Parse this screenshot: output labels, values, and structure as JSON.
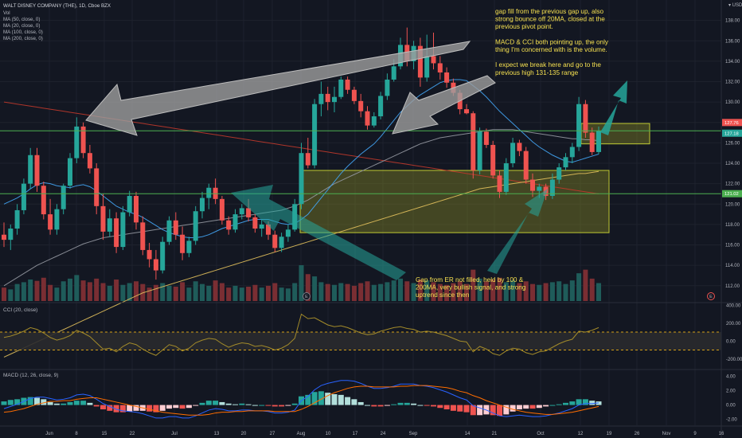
{
  "header": {
    "symbol": "WALT DISNEY COMPANY (THE), 1D, Cboe BZX",
    "vol_label": "Vol",
    "indicators": [
      "MA (50, close, 0)",
      "MA (20, close, 0)",
      "MA (100, close, 0)",
      "MA (200, close, 0)"
    ],
    "currency": "USD"
  },
  "annotations": {
    "top_note": [
      "gap fill from the previous gap up, also",
      "strong bounce off 20MA, closed at the",
      "previous pivot point.",
      "",
      "MACD & CCI both pointing up, the only",
      "thing I'm concerned with is the volume.",
      "",
      "I expect we break here and go to the",
      "previous high 131-135 range"
    ],
    "bottom_note": [
      "Gap from ER not filled, held by 100 &",
      "200MA, very bullish signal, and strong",
      "uptrend since then"
    ]
  },
  "cci_panel": {
    "title": "CCI (20, close)",
    "ticks": [
      "400.00",
      "200.00",
      "0.00",
      "-200.00"
    ]
  },
  "macd_panel": {
    "title": "MACD (12, 26, close, 9)",
    "ticks": [
      "4.00",
      "2.00",
      "0.00",
      "-2.00"
    ]
  },
  "price_labels": [
    "127.76",
    "127.18",
    "121.02"
  ],
  "earnings_markers": [
    "E",
    "E"
  ],
  "colors": {
    "up": "#26a69a",
    "down": "#ef5350",
    "ma20": "#42a5f5",
    "ma50": "#9598a1",
    "ma100": "#e2c05c",
    "ma200": "#c0392b",
    "hline": "#4caf50",
    "zone": "#9e9d24",
    "arrow": "#26a69a"
  },
  "chart_data": {
    "type": "candlestick",
    "xlabels": [
      "Jun",
      "8",
      "15",
      "22",
      "Jul",
      "13",
      "20",
      "27",
      "Aug",
      "10",
      "17",
      "24",
      "Sep",
      "14",
      "21",
      "Oct",
      "12",
      "19",
      "26",
      "Nov",
      "9",
      "16"
    ],
    "ylim": [
      110.5,
      140
    ],
    "yticks": [
      "138.00",
      "136.00",
      "134.00",
      "132.00",
      "130.00",
      "128.00",
      "126.00",
      "124.00",
      "122.00",
      "120.00",
      "118.00",
      "116.00",
      "114.00",
      "112.00"
    ],
    "hlines": [
      127.18,
      121.02
    ],
    "candles": [
      [
        117,
        118.2,
        115.8,
        116.5
      ],
      [
        116.5,
        118,
        115.5,
        117.6
      ],
      [
        117.6,
        120,
        117,
        119.4
      ],
      [
        119.4,
        122.5,
        119,
        122
      ],
      [
        122,
        125.5,
        121.5,
        124.8
      ],
      [
        124.8,
        125.5,
        121.2,
        121.8
      ],
      [
        121.8,
        122.2,
        118.5,
        119
      ],
      [
        119,
        120.5,
        117,
        117.5
      ],
      [
        117.5,
        120,
        117,
        119.5
      ],
      [
        119.5,
        122,
        119,
        121.8
      ],
      [
        121.8,
        125,
        121.5,
        124.5
      ],
      [
        124.5,
        128.5,
        124,
        127.6
      ],
      [
        127.6,
        128,
        124.5,
        125
      ],
      [
        125,
        125.8,
        123,
        123.5
      ],
      [
        123.5,
        124,
        119,
        119.8
      ],
      [
        119.8,
        121,
        116.5,
        117.3
      ],
      [
        117.3,
        119.5,
        116.8,
        118.6
      ],
      [
        118.6,
        119.2,
        115.2,
        115.8
      ],
      [
        115.8,
        119.8,
        115.5,
        119.2
      ],
      [
        119.2,
        121.3,
        118.8,
        120.8
      ],
      [
        120.8,
        121.2,
        117.5,
        118.2
      ],
      [
        118.2,
        118.8,
        115,
        115.5
      ],
      [
        115.5,
        116.2,
        113.8,
        114.6
      ],
      [
        114.6,
        115.5,
        112.6,
        113.5
      ],
      [
        113.5,
        116.8,
        113.2,
        116.3
      ],
      [
        116.3,
        118.8,
        116,
        118.4
      ],
      [
        118.4,
        119.2,
        116.5,
        117
      ],
      [
        117,
        117.8,
        114.5,
        115.2
      ],
      [
        115.2,
        116.8,
        114.8,
        116.4
      ],
      [
        116.4,
        119.8,
        116,
        119.3
      ],
      [
        119.3,
        121.2,
        118.6,
        120.6
      ],
      [
        120.6,
        122,
        119.5,
        121.6
      ],
      [
        121.6,
        122.5,
        120,
        120.5
      ],
      [
        120.5,
        120.8,
        118,
        118.4
      ],
      [
        118.4,
        118.8,
        117,
        117.5
      ],
      [
        117.5,
        119.5,
        117.2,
        119
      ],
      [
        119,
        120,
        118.5,
        119.6
      ],
      [
        119.6,
        120.5,
        118.3,
        118.7
      ],
      [
        118.7,
        119,
        117.2,
        117.6
      ],
      [
        117.6,
        118.5,
        116.8,
        118
      ],
      [
        118,
        118.3,
        116.5,
        117
      ],
      [
        117,
        117.4,
        115.3,
        115.7
      ],
      [
        115.7,
        117.2,
        115.3,
        116.8
      ],
      [
        116.8,
        118,
        116.3,
        117.5
      ],
      [
        117.5,
        120.5,
        117.3,
        120
      ],
      [
        120,
        126,
        119.5,
        125
      ],
      [
        125,
        126.5,
        123.5,
        123.8
      ],
      [
        123.8,
        130.3,
        123.5,
        129.8
      ],
      [
        129.8,
        132,
        128.6,
        130.8
      ],
      [
        130.8,
        131.5,
        129.2,
        130
      ],
      [
        130,
        131.5,
        129,
        130.5
      ],
      [
        130.5,
        132.5,
        130.3,
        132.2
      ],
      [
        132.2,
        132.5,
        130.8,
        131.2
      ],
      [
        131.2,
        131.5,
        129.8,
        130.1
      ],
      [
        130.1,
        130.8,
        128.5,
        129.1
      ],
      [
        129.1,
        129.6,
        127.3,
        127.7
      ],
      [
        127.7,
        129,
        127.5,
        128.6
      ],
      [
        128.6,
        131,
        128.3,
        130.6
      ],
      [
        130.6,
        132.8,
        130.2,
        132.2
      ],
      [
        132.2,
        134.2,
        132,
        133.5
      ],
      [
        133.5,
        136.3,
        133.2,
        135.6
      ],
      [
        135.6,
        137.3,
        133.5,
        134
      ],
      [
        134,
        136,
        133.2,
        135.5
      ],
      [
        135.5,
        136.3,
        131.5,
        132.4
      ],
      [
        132.4,
        136.6,
        132,
        134.5
      ],
      [
        134.5,
        136.8,
        133.2,
        133.8
      ],
      [
        133.8,
        134.5,
        132.2,
        132.9
      ],
      [
        132.9,
        133.4,
        131.4,
        131.9
      ],
      [
        131.9,
        132.3,
        130.6,
        130.9
      ],
      [
        130.9,
        131.2,
        128.8,
        129.3
      ],
      [
        129.3,
        129.8,
        128.8,
        128.9
      ],
      [
        128.9,
        129.1,
        122.5,
        123.3
      ],
      [
        123.3,
        127.5,
        122.9,
        127.1
      ],
      [
        127.1,
        127.4,
        125.5,
        125.8
      ],
      [
        125.8,
        126.2,
        122.5,
        122.8
      ],
      [
        122.8,
        123.3,
        120.6,
        121.2
      ],
      [
        121.2,
        124.5,
        120.9,
        124
      ],
      [
        124,
        126.5,
        123.6,
        126
      ],
      [
        126,
        126.3,
        124.7,
        125.2
      ],
      [
        125.2,
        125.6,
        122,
        122.4
      ],
      [
        122.4,
        123,
        120.7,
        121.3
      ],
      [
        121.3,
        122,
        120.6,
        121.7
      ],
      [
        121.7,
        122,
        120.4,
        120.8
      ],
      [
        120.8,
        123,
        120.5,
        122.4
      ],
      [
        122.4,
        124,
        122,
        123.6
      ],
      [
        123.6,
        125,
        123.3,
        124.6
      ],
      [
        124.6,
        126,
        124,
        125.6
      ],
      [
        125.6,
        130.5,
        125.2,
        129.8
      ],
      [
        129.8,
        130.2,
        126.5,
        127
      ],
      [
        127,
        127.5,
        124.8,
        125.1
      ],
      [
        125.1,
        127.6,
        124.9,
        127.2
      ]
    ],
    "ma20": [
      120,
      120.3,
      120.6,
      121,
      121.5,
      121.9,
      122.1,
      122,
      121.8,
      121.7,
      121.6,
      121.8,
      121.9,
      121.7,
      121.3,
      120.8,
      120.3,
      119.8,
      119.5,
      119.2,
      119,
      118.7,
      118.3,
      117.9,
      117.5,
      117.2,
      117,
      116.8,
      116.7,
      116.7,
      116.8,
      117,
      117.3,
      117.6,
      117.8,
      118,
      118.2,
      118.4,
      118.5,
      118.5,
      118.5,
      118.3,
      118.1,
      118,
      118.1,
      118.5,
      119,
      119.8,
      120.6,
      121.4,
      122.2,
      123,
      123.7,
      124.3,
      124.9,
      125.4,
      125.9,
      126.6,
      127.4,
      128.2,
      129,
      129.6,
      130.2,
      130.7,
      131.1,
      131.5,
      131.9,
      132.1,
      132.2,
      132.2,
      132.1,
      131.6,
      131.1,
      130.5,
      129.8,
      129.1,
      128.5,
      127.9,
      127.3,
      126.7,
      126.1,
      125.6,
      125.2,
      124.8,
      124.5,
      124.2,
      124.1,
      124.3,
      124.5,
      124.7,
      124.9
    ],
    "ma50": [
      112,
      112.4,
      112.8,
      113.2,
      113.6,
      114,
      114.3,
      114.6,
      114.9,
      115.2,
      115.5,
      115.8,
      116.1,
      116.3,
      116.5,
      116.7,
      116.8,
      116.9,
      117,
      117.1,
      117.2,
      117.3,
      117.4,
      117.5,
      117.6,
      117.7,
      117.8,
      117.9,
      118,
      118.1,
      118.2,
      118.3,
      118.4,
      118.5,
      118.6,
      118.7,
      118.8,
      118.9,
      119,
      119.1,
      119.2,
      119.3,
      119.4,
      119.6,
      119.8,
      120.1,
      120.4,
      120.8,
      121.2,
      121.6,
      122,
      122.3,
      122.6,
      122.9,
      123.2,
      123.5,
      123.8,
      124.1,
      124.4,
      124.7,
      125,
      125.3,
      125.6,
      125.9,
      126.1,
      126.3,
      126.5,
      126.6,
      126.7,
      126.8,
      126.9,
      127,
      127.1,
      127.2,
      127.3,
      127.3,
      127.3,
      127.3,
      127.2,
      127.1,
      127,
      126.9,
      126.8,
      126.7,
      126.6,
      126.5,
      126.4,
      126.4,
      126.3,
      126.3,
      126.2
    ],
    "ma100": [
      105,
      105.3,
      105.6,
      105.9,
      106.2,
      106.5,
      106.8,
      107.1,
      107.4,
      107.7,
      108,
      108.3,
      108.6,
      108.9,
      109.2,
      109.5,
      109.8,
      110.1,
      110.4,
      110.7,
      111,
      111.3,
      111.5,
      111.7,
      111.9,
      112.1,
      112.3,
      112.5,
      112.7,
      112.9,
      113.1,
      113.3,
      113.5,
      113.7,
      113.9,
      114.1,
      114.3,
      114.5,
      114.7,
      114.9,
      115.1,
      115.3,
      115.5,
      115.7,
      115.9,
      116.1,
      116.3,
      116.5,
      116.7,
      116.9,
      117.1,
      117.3,
      117.5,
      117.7,
      117.9,
      118.1,
      118.3,
      118.5,
      118.7,
      118.9,
      119.1,
      119.3,
      119.5,
      119.7,
      119.9,
      120.1,
      120.3,
      120.5,
      120.7,
      120.9,
      121.1,
      121.3,
      121.5,
      121.6,
      121.7,
      121.8,
      121.9,
      122,
      122.1,
      122.2,
      122.3,
      122.4,
      122.5,
      122.6,
      122.7,
      122.8,
      122.9,
      123,
      123,
      123.1,
      123.2
    ],
    "ma200": [
      130,
      129.9,
      129.8,
      129.7,
      129.6,
      129.5,
      129.4,
      129.3,
      129.2,
      129.1,
      129,
      128.9,
      128.8,
      128.7,
      128.6,
      128.5,
      128.4,
      128.3,
      128.2,
      128.1,
      128,
      127.9,
      127.8,
      127.7,
      127.6,
      127.5,
      127.4,
      127.3,
      127.2,
      127.1,
      127,
      126.9,
      126.8,
      126.7,
      126.6,
      126.5,
      126.4,
      126.3,
      126.2,
      126.1,
      126,
      125.9,
      125.8,
      125.7,
      125.6,
      125.5,
      125.4,
      125.3,
      125.2,
      125.1,
      125,
      124.9,
      124.8,
      124.7,
      124.6,
      124.5,
      124.4,
      124.3,
      124.2,
      124.1,
      124,
      123.9,
      123.8,
      123.7,
      123.6,
      123.5,
      123.4,
      123.3,
      123.2,
      123.1,
      123,
      122.9,
      122.8,
      122.7,
      122.6,
      122.5,
      122.4,
      122.3,
      122.2,
      122.1,
      122,
      121.9,
      121.8,
      121.7,
      121.6,
      121.5,
      121.4,
      121.3,
      121.2,
      121.1,
      121
    ],
    "volume": [
      30,
      26,
      38,
      42,
      48,
      45,
      52,
      36,
      30,
      44,
      50,
      58,
      46,
      42,
      50,
      40,
      34,
      48,
      36,
      40,
      44,
      38,
      30,
      36,
      40,
      34,
      32,
      42,
      30,
      44,
      38,
      34,
      46,
      40,
      30,
      34,
      30,
      32,
      36,
      30,
      34,
      40,
      30,
      28,
      40,
      80,
      60,
      55,
      42,
      38,
      36,
      40,
      38,
      34,
      40,
      44,
      36,
      38,
      42,
      46,
      50,
      44,
      40,
      48,
      46,
      42,
      38,
      36,
      40,
      44,
      38,
      70,
      50,
      44,
      48,
      52,
      42,
      46,
      40,
      44,
      38,
      36,
      40,
      42,
      44,
      38,
      46,
      62,
      70,
      50,
      40
    ],
    "cci": [
      40,
      55,
      80,
      110,
      150,
      130,
      90,
      40,
      10,
      30,
      60,
      120,
      90,
      50,
      -20,
      -90,
      -80,
      -120,
      -60,
      -20,
      -40,
      -90,
      -130,
      -160,
      -100,
      -40,
      -60,
      -110,
      -80,
      -20,
      10,
      30,
      20,
      -30,
      -70,
      -40,
      -20,
      -30,
      -60,
      -50,
      -70,
      -100,
      -80,
      -40,
      30,
      300,
      250,
      260,
      220,
      180,
      160,
      170,
      150,
      120,
      90,
      70,
      80,
      110,
      130,
      150,
      160,
      140,
      130,
      100,
      110,
      100,
      80,
      60,
      30,
      0,
      -10,
      -120,
      -60,
      -90,
      -140,
      -160,
      -110,
      -80,
      -90,
      -130,
      -150,
      -120,
      -110,
      -70,
      -30,
      0,
      20,
      110,
      100,
      120,
      150
    ],
    "macd": [
      -0.5,
      -0.2,
      0.1,
      0.5,
      0.9,
      1.1,
      1.1,
      0.9,
      0.7,
      0.8,
      1.0,
      1.4,
      1.5,
      1.3,
      0.8,
      0.2,
      -0.2,
      -0.6,
      -0.8,
      -0.9,
      -1.0,
      -1.2,
      -1.5,
      -1.8,
      -1.8,
      -1.6,
      -1.6,
      -1.8,
      -1.8,
      -1.5,
      -1.1,
      -0.7,
      -0.5,
      -0.6,
      -0.8,
      -0.8,
      -0.7,
      -0.7,
      -0.8,
      -0.8,
      -0.9,
      -1.1,
      -1.1,
      -1.0,
      -0.7,
      0.6,
      1.2,
      2.1,
      2.7,
      3.0,
      3.2,
      3.4,
      3.4,
      3.3,
      3.0,
      2.6,
      2.3,
      2.3,
      2.4,
      2.6,
      2.9,
      2.9,
      2.9,
      2.7,
      2.6,
      2.4,
      2.1,
      1.8,
      1.4,
      1.0,
      0.7,
      -0.1,
      -0.4,
      -0.7,
      -1.1,
      -1.5,
      -1.6,
      -1.5,
      -1.4,
      -1.5,
      -1.6,
      -1.6,
      -1.5,
      -1.3,
      -1.1,
      -0.8,
      -0.5,
      0.0,
      0.2,
      0.2,
      0.3
    ],
    "signal": [
      -1.0,
      -0.9,
      -0.7,
      -0.5,
      -0.2,
      0.1,
      0.3,
      0.5,
      0.5,
      0.6,
      0.6,
      0.8,
      0.9,
      1.0,
      1.0,
      0.8,
      0.6,
      0.4,
      0.2,
      0.0,
      -0.2,
      -0.4,
      -0.6,
      -0.8,
      -1.0,
      -1.1,
      -1.2,
      -1.3,
      -1.4,
      -1.4,
      -1.4,
      -1.3,
      -1.1,
      -1.0,
      -1.0,
      -0.9,
      -0.9,
      -0.8,
      -0.8,
      -0.8,
      -0.8,
      -0.9,
      -0.9,
      -0.9,
      -0.9,
      -0.6,
      -0.2,
      0.3,
      0.8,
      1.3,
      1.7,
      2.0,
      2.3,
      2.5,
      2.6,
      2.6,
      2.5,
      2.5,
      2.5,
      2.5,
      2.6,
      2.6,
      2.7,
      2.7,
      2.7,
      2.6,
      2.5,
      2.4,
      2.2,
      1.9,
      1.7,
      1.3,
      1.0,
      0.6,
      0.3,
      0.0,
      -0.3,
      -0.6,
      -0.8,
      -1.0,
      -1.1,
      -1.2,
      -1.3,
      -1.3,
      -1.2,
      -1.1,
      -1.0,
      -0.8,
      -0.6,
      -0.4,
      -0.2
    ]
  }
}
